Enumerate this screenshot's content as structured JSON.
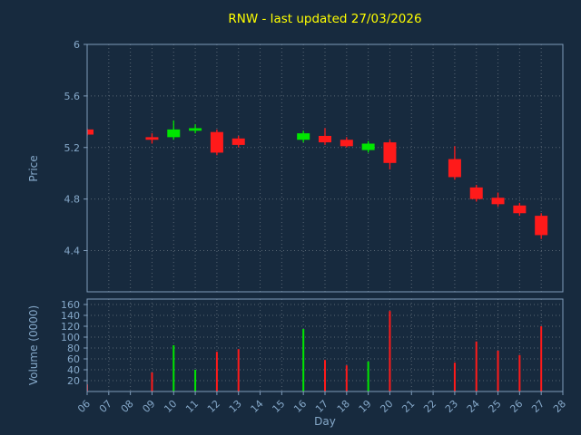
{
  "title": "RNW - last updated 27/03/2026",
  "colors": {
    "background": "#172a3e",
    "title": "#ffff00",
    "axis_text": "#85a8c9",
    "spine": "#7f9cba",
    "grid": "#ffffff",
    "up": "#00e600",
    "down": "#ff1a1a"
  },
  "chart_data": [
    {
      "type": "candlestick",
      "title": "RNW - last updated 27/03/2026",
      "xlabel": "Day",
      "ylabel": "Price",
      "xlim": [
        6,
        28
      ],
      "ylim": [
        4.08,
        6.0
      ],
      "y_ticks": [
        6,
        5.6,
        5.2,
        4.8,
        4.4
      ],
      "x_ticks": [
        "06",
        "07",
        "08",
        "09",
        "10",
        "11",
        "12",
        "13",
        "14",
        "15",
        "16",
        "17",
        "18",
        "19",
        "20",
        "21",
        "22",
        "23",
        "24",
        "25",
        "26",
        "27",
        "28"
      ],
      "grid": true,
      "legend": "none",
      "candles": [
        {
          "day": 6,
          "open": 5.34,
          "high": 5.35,
          "low": 5.29,
          "close": 5.3
        },
        {
          "day": 9,
          "open": 5.28,
          "high": 5.31,
          "low": 5.23,
          "close": 5.26
        },
        {
          "day": 10,
          "open": 5.28,
          "high": 5.41,
          "low": 5.26,
          "close": 5.34
        },
        {
          "day": 11,
          "open": 5.33,
          "high": 5.38,
          "low": 5.31,
          "close": 5.35
        },
        {
          "day": 12,
          "open": 5.32,
          "high": 5.34,
          "low": 5.14,
          "close": 5.16
        },
        {
          "day": 13,
          "open": 5.27,
          "high": 5.29,
          "low": 5.2,
          "close": 5.22
        },
        {
          "day": 16,
          "open": 5.26,
          "high": 5.33,
          "low": 5.24,
          "close": 5.31
        },
        {
          "day": 17,
          "open": 5.29,
          "high": 5.35,
          "low": 5.22,
          "close": 5.24
        },
        {
          "day": 18,
          "open": 5.26,
          "high": 5.28,
          "low": 5.2,
          "close": 5.21
        },
        {
          "day": 19,
          "open": 5.18,
          "high": 5.25,
          "low": 5.16,
          "close": 5.23
        },
        {
          "day": 20,
          "open": 5.24,
          "high": 5.26,
          "low": 5.03,
          "close": 5.08
        },
        {
          "day": 23,
          "open": 5.11,
          "high": 5.21,
          "low": 4.95,
          "close": 4.97
        },
        {
          "day": 24,
          "open": 4.89,
          "high": 4.91,
          "low": 4.78,
          "close": 4.8
        },
        {
          "day": 25,
          "open": 4.81,
          "high": 4.85,
          "low": 4.74,
          "close": 4.76
        },
        {
          "day": 26,
          "open": 4.75,
          "high": 4.77,
          "low": 4.67,
          "close": 4.69
        },
        {
          "day": 27,
          "open": 4.67,
          "high": 4.69,
          "low": 4.49,
          "close": 4.52
        }
      ]
    },
    {
      "type": "bar",
      "ylabel": "Volume (0000)",
      "ylim": [
        0,
        170
      ],
      "y_ticks": [
        160,
        140,
        120,
        100,
        80,
        60,
        40,
        20
      ],
      "grid": true,
      "bars": [
        {
          "day": 6,
          "value": 13,
          "dir": "down"
        },
        {
          "day": 9,
          "value": 35,
          "dir": "down"
        },
        {
          "day": 10,
          "value": 85,
          "dir": "up"
        },
        {
          "day": 11,
          "value": 40,
          "dir": "up"
        },
        {
          "day": 12,
          "value": 73,
          "dir": "down"
        },
        {
          "day": 13,
          "value": 78,
          "dir": "down"
        },
        {
          "day": 16,
          "value": 115,
          "dir": "up"
        },
        {
          "day": 17,
          "value": 58,
          "dir": "down"
        },
        {
          "day": 18,
          "value": 48,
          "dir": "down"
        },
        {
          "day": 19,
          "value": 55,
          "dir": "up"
        },
        {
          "day": 20,
          "value": 148,
          "dir": "down"
        },
        {
          "day": 23,
          "value": 53,
          "dir": "down"
        },
        {
          "day": 24,
          "value": 92,
          "dir": "down"
        },
        {
          "day": 25,
          "value": 75,
          "dir": "down"
        },
        {
          "day": 26,
          "value": 67,
          "dir": "down"
        },
        {
          "day": 27,
          "value": 120,
          "dir": "down"
        }
      ]
    }
  ]
}
